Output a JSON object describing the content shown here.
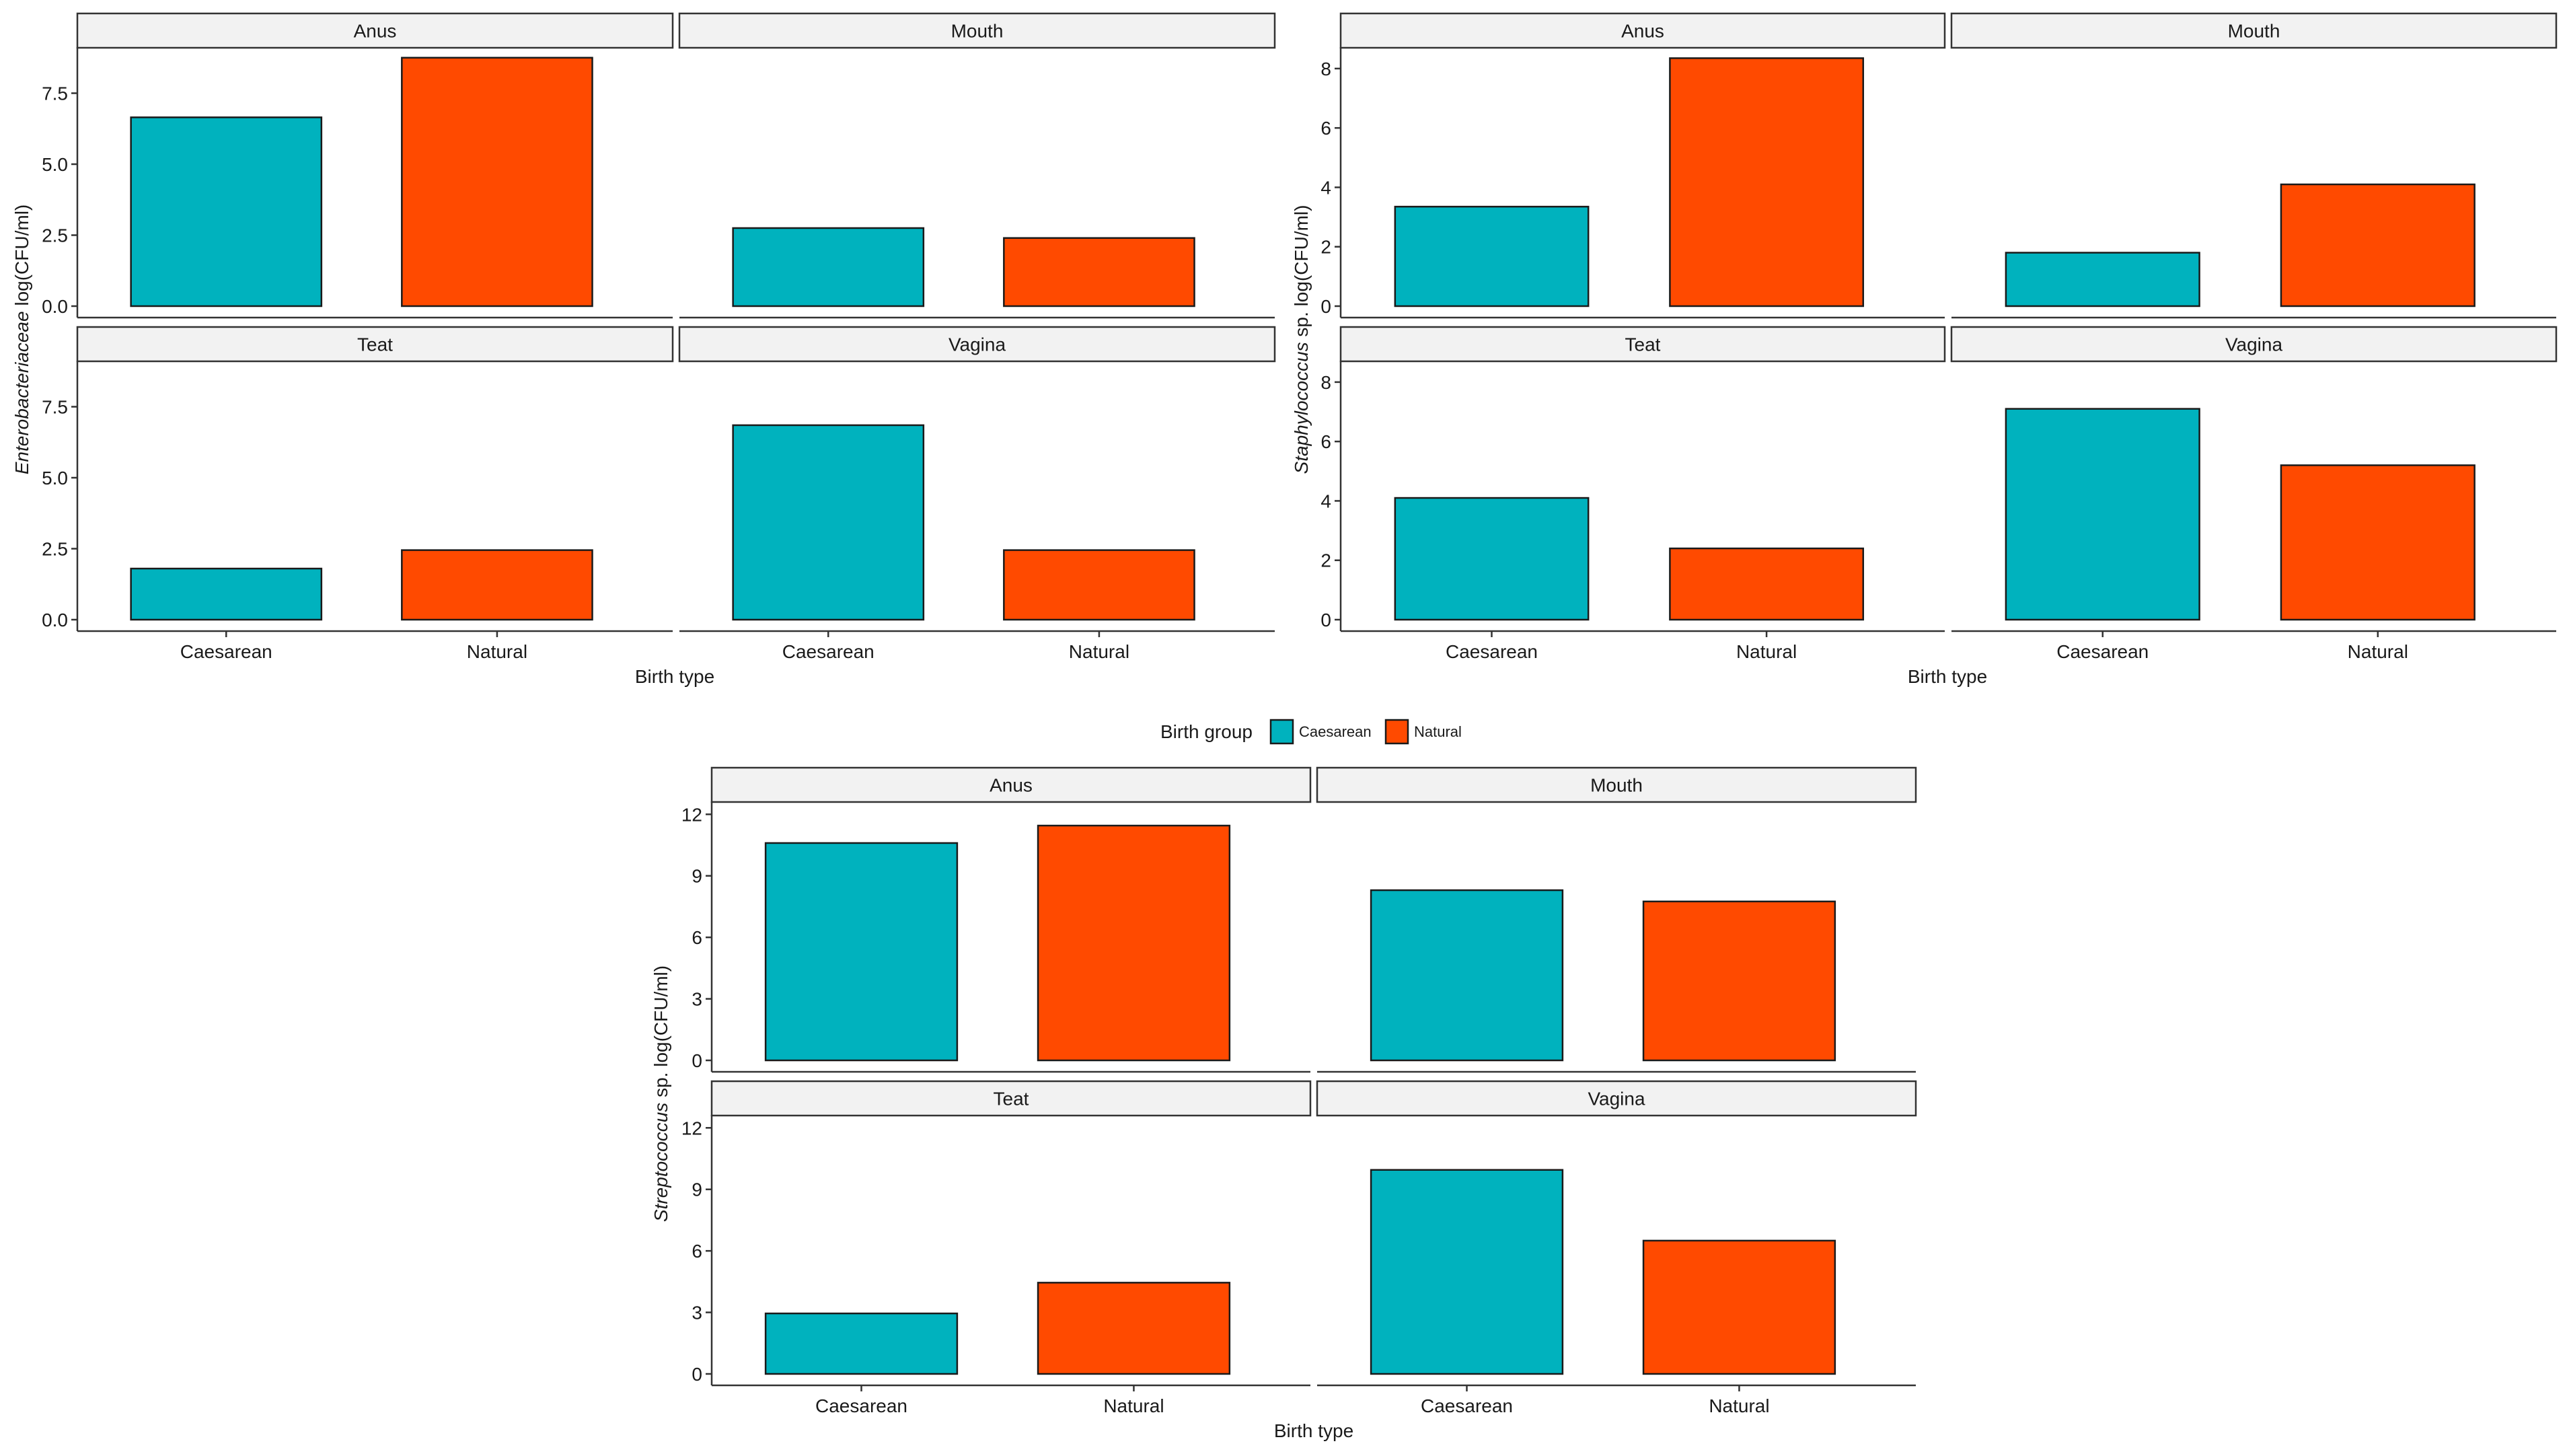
{
  "legend": {
    "title": "Birth group",
    "items": [
      {
        "label": "Caesarean",
        "color": "#00B2BE"
      },
      {
        "label": "Natural",
        "color": "#FF4A00"
      }
    ]
  },
  "chart_data": [
    {
      "type": "bar",
      "name": "enterobacteriaceae",
      "ylabel_italic": "Enterobacteriaceae",
      "ylabel_rest": " log(CFU/ml)",
      "xlabel": "Birth type",
      "categories": [
        "Caesarean",
        "Natural"
      ],
      "ylim": [
        0,
        9.1
      ],
      "yticks": [
        0,
        2.5,
        5,
        7.5
      ],
      "ytick_labels": [
        "0.0",
        "2.5",
        "5.0",
        "7.5"
      ],
      "facets": [
        {
          "site": "Anus",
          "values": [
            6.65,
            8.75
          ]
        },
        {
          "site": "Mouth",
          "values": [
            2.75,
            2.4
          ]
        },
        {
          "site": "Teat",
          "values": [
            1.8,
            2.45
          ]
        },
        {
          "site": "Vagina",
          "values": [
            6.85,
            2.45
          ]
        }
      ]
    },
    {
      "type": "bar",
      "name": "staphylococcus",
      "ylabel_italic": "Staphylococcus",
      "ylabel_rest": " sp. log(CFU/ml)",
      "xlabel": "Birth type",
      "categories": [
        "Caesarean",
        "Natural"
      ],
      "ylim": [
        0,
        8.7
      ],
      "yticks": [
        0,
        2,
        4,
        6,
        8
      ],
      "ytick_labels": [
        "0",
        "2",
        "4",
        "6",
        "8"
      ],
      "facets": [
        {
          "site": "Anus",
          "values": [
            3.35,
            8.35
          ]
        },
        {
          "site": "Mouth",
          "values": [
            1.8,
            4.1
          ]
        },
        {
          "site": "Teat",
          "values": [
            4.1,
            2.4
          ]
        },
        {
          "site": "Vagina",
          "values": [
            7.1,
            5.2
          ]
        }
      ]
    },
    {
      "type": "bar",
      "name": "streptococcus",
      "ylabel_italic": "Streptococcus",
      "ylabel_rest": " sp. log(CFU/ml)",
      "xlabel": "Birth type",
      "categories": [
        "Caesarean",
        "Natural"
      ],
      "ylim": [
        0,
        12.6
      ],
      "yticks": [
        0,
        3,
        6,
        9,
        12
      ],
      "ytick_labels": [
        "0",
        "3",
        "6",
        "9",
        "12"
      ],
      "facets": [
        {
          "site": "Anus",
          "values": [
            10.6,
            11.45
          ]
        },
        {
          "site": "Mouth",
          "values": [
            8.3,
            7.75
          ]
        },
        {
          "site": "Teat",
          "values": [
            2.95,
            4.45
          ]
        },
        {
          "site": "Vagina",
          "values": [
            9.95,
            6.5
          ]
        }
      ]
    }
  ]
}
